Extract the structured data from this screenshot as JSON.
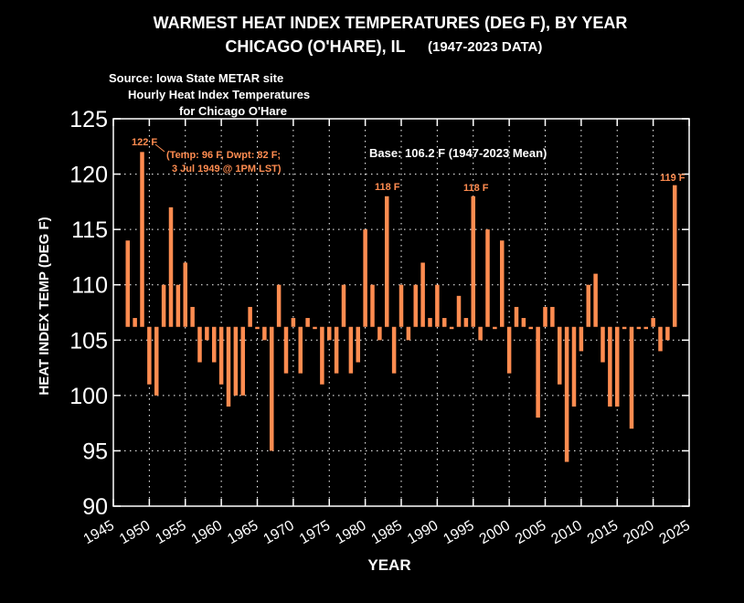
{
  "title_line1": "WARMEST HEAT INDEX TEMPERATURES (DEG F), BY YEAR",
  "title_line2": "CHICAGO (O'HARE), IL",
  "title_line2_suffix": "(1947-2023 DATA)",
  "source_line1": "Source: Iowa State METAR site",
  "source_line2": "Hourly Heat Index Temperatures",
  "source_line3": "for Chicago O'Hare",
  "base_note": "Base: 106.2 F (1947-2023 Mean)",
  "annotations": {
    "a1949_value": "122 F",
    "a1949_detail1": "(Temp: 96 F, Dwpt: 82 F;",
    "a1949_detail2": "3 Jul 1949 @ 1PM LST)",
    "a1983_value": "118 F",
    "a1995_value": "118 F",
    "a2023_value": "119 F"
  },
  "colors": {
    "bar": "#ff8c50",
    "background": "#000000",
    "text": "#ffffff",
    "annotation": "#ff8c50"
  },
  "chart_data": {
    "type": "bar",
    "xlabel": "YEAR",
    "ylabel": "HEAT INDEX TEMP (DEG F)",
    "baseline": 106.2,
    "xlim": [
      1945,
      2025
    ],
    "ylim": [
      90,
      125
    ],
    "xticks": [
      1945,
      1950,
      1955,
      1960,
      1965,
      1970,
      1975,
      1980,
      1985,
      1990,
      1995,
      2000,
      2005,
      2010,
      2015,
      2020,
      2025
    ],
    "yticks": [
      90,
      95,
      100,
      105,
      110,
      115,
      120,
      125
    ],
    "grid": true,
    "years": [
      1947,
      1948,
      1949,
      1950,
      1951,
      1952,
      1953,
      1954,
      1955,
      1956,
      1957,
      1958,
      1959,
      1960,
      1961,
      1962,
      1963,
      1964,
      1965,
      1966,
      1967,
      1968,
      1969,
      1970,
      1971,
      1972,
      1973,
      1974,
      1975,
      1976,
      1977,
      1978,
      1979,
      1980,
      1981,
      1982,
      1983,
      1984,
      1985,
      1986,
      1987,
      1988,
      1989,
      1990,
      1991,
      1992,
      1993,
      1994,
      1995,
      1996,
      1997,
      1998,
      1999,
      2000,
      2001,
      2002,
      2003,
      2004,
      2005,
      2006,
      2007,
      2008,
      2009,
      2010,
      2011,
      2012,
      2013,
      2014,
      2015,
      2016,
      2017,
      2018,
      2019,
      2020,
      2021,
      2022,
      2023
    ],
    "values": [
      114,
      107,
      122,
      101,
      100,
      110,
      117,
      110,
      112,
      108,
      103,
      105,
      103,
      101,
      99,
      100,
      100,
      108,
      106,
      105,
      95,
      110,
      102,
      107,
      102,
      107,
      106,
      101,
      105,
      102,
      110,
      102,
      103,
      115,
      110,
      105,
      118,
      102,
      110,
      105,
      110,
      112,
      107,
      110,
      107,
      106,
      109,
      107,
      118,
      105,
      115,
      106,
      114,
      102,
      108,
      107,
      106,
      98,
      108,
      108,
      101,
      94,
      99,
      104,
      110,
      111,
      103,
      99,
      99,
      106,
      97,
      106,
      106,
      107,
      104,
      105,
      119
    ]
  }
}
